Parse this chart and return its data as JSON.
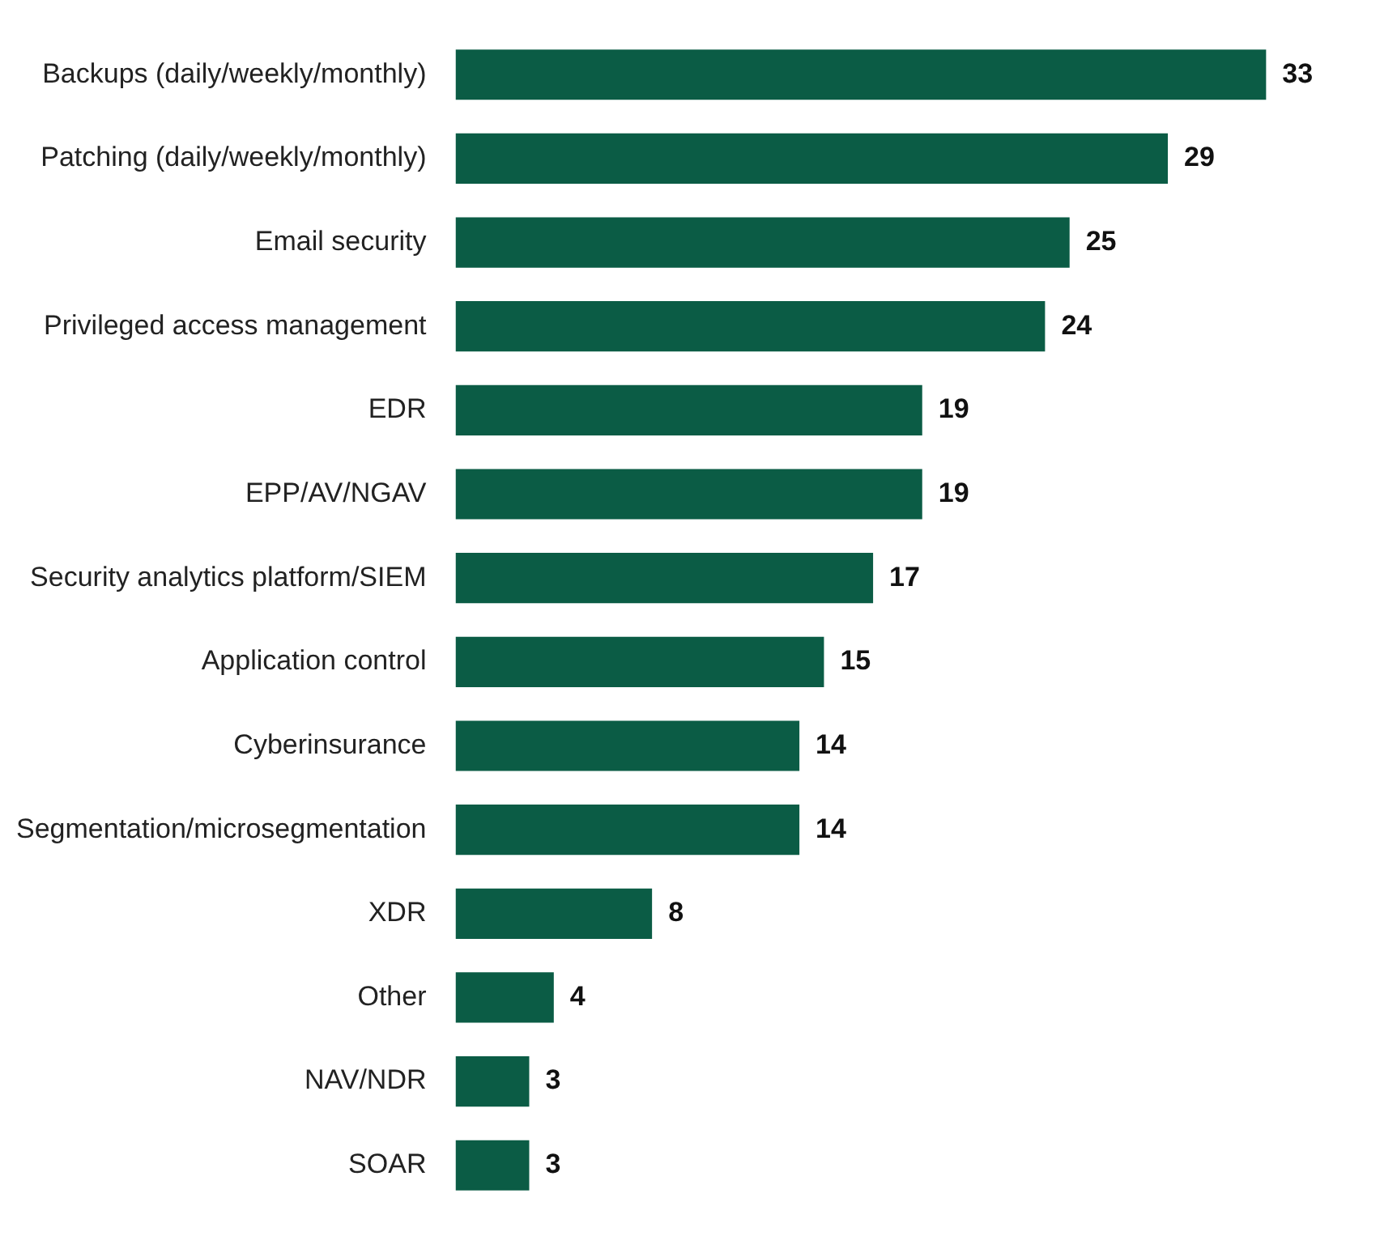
{
  "chart_data": {
    "type": "bar",
    "orientation": "horizontal",
    "categories": [
      "Backups (daily/weekly/monthly)",
      "Patching (daily/weekly/monthly)",
      "Email security",
      "Privileged access management",
      "EDR",
      "EPP/AV/NGAV",
      "Security analytics platform/SIEM",
      "Application control",
      "Cyberinsurance",
      "Segmentation/microsegmentation",
      "XDR",
      "Other",
      "NAV/NDR",
      "SOAR"
    ],
    "values": [
      33,
      29,
      25,
      24,
      19,
      19,
      17,
      15,
      14,
      14,
      8,
      4,
      3,
      3
    ],
    "color": "#0b5c45",
    "data_labels": true
  }
}
